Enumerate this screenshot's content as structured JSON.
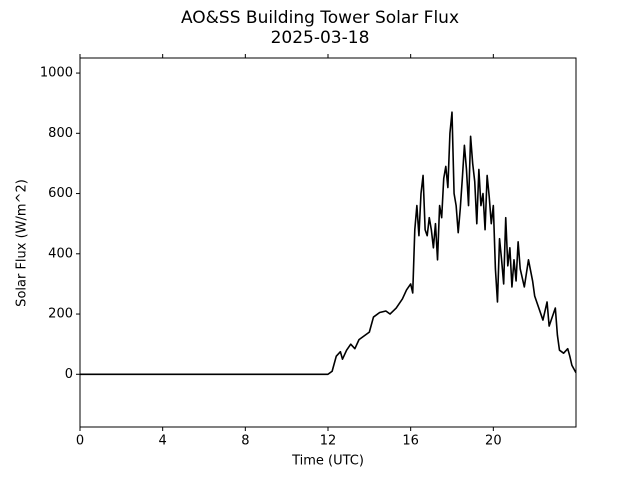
{
  "chart_data": {
    "type": "line",
    "title": "AO&SS Building Tower Solar Flux",
    "subtitle": "2025-03-18",
    "x_label": "Time (UTC)",
    "y_label": "Solar Flux (W/m^2)",
    "xlim": [
      0,
      24
    ],
    "xticks": [
      0,
      4,
      8,
      12,
      16,
      20
    ],
    "ylim": [
      -175,
      1050
    ],
    "yticks": [
      0,
      200,
      400,
      600,
      800,
      1000
    ],
    "series": [
      {
        "color": "#000000",
        "x": [
          0,
          12,
          12.2,
          12.4,
          12.6,
          12.7,
          12.9,
          13.1,
          13.3,
          13.5,
          13.8,
          14.0,
          14.2,
          14.5,
          14.8,
          15.0,
          15.3,
          15.6,
          15.8,
          16.0,
          16.1,
          16.2,
          16.3,
          16.4,
          16.5,
          16.6,
          16.7,
          16.8,
          16.9,
          17.0,
          17.1,
          17.2,
          17.3,
          17.4,
          17.5,
          17.6,
          17.7,
          17.8,
          17.9,
          18.0,
          18.1,
          18.2,
          18.3,
          18.4,
          18.5,
          18.6,
          18.7,
          18.8,
          18.9,
          19.0,
          19.1,
          19.2,
          19.3,
          19.4,
          19.5,
          19.6,
          19.7,
          19.8,
          19.9,
          20.0,
          20.1,
          20.2,
          20.3,
          20.4,
          20.5,
          20.6,
          20.7,
          20.8,
          20.9,
          21.0,
          21.1,
          21.2,
          21.3,
          21.5,
          21.7,
          21.9,
          22.0,
          22.2,
          22.4,
          22.6,
          22.7,
          22.9,
          23.0,
          23.1,
          23.2,
          23.4,
          23.6,
          23.7,
          23.8,
          24.0
        ],
        "values": [
          0,
          0,
          10,
          60,
          75,
          50,
          80,
          100,
          85,
          115,
          130,
          140,
          190,
          205,
          210,
          200,
          220,
          250,
          280,
          300,
          270,
          480,
          560,
          460,
          600,
          660,
          480,
          460,
          520,
          480,
          420,
          500,
          380,
          560,
          520,
          650,
          690,
          620,
          800,
          870,
          600,
          560,
          470,
          550,
          650,
          760,
          680,
          560,
          790,
          700,
          640,
          500,
          680,
          560,
          600,
          480,
          660,
          590,
          500,
          560,
          350,
          240,
          450,
          380,
          300,
          520,
          360,
          420,
          290,
          380,
          310,
          440,
          350,
          290,
          380,
          310,
          260,
          220,
          180,
          240,
          160,
          200,
          220,
          130,
          80,
          70,
          85,
          60,
          30,
          5
        ]
      }
    ]
  }
}
